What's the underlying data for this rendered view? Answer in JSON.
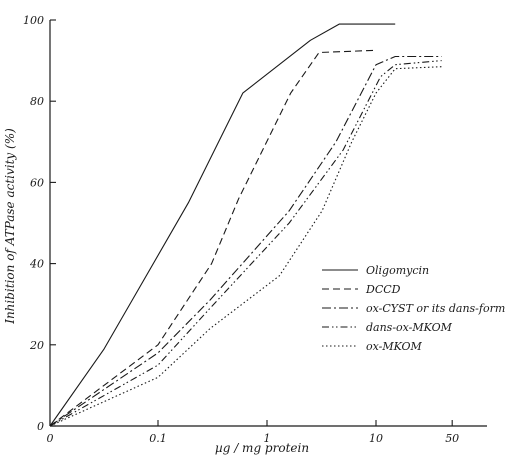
{
  "chart_data": {
    "type": "line",
    "xlabel": "µg / mg protein",
    "ylabel": "Inhibition of ATPase activity   (%)",
    "x_scale": "log",
    "xlim": [
      0,
      50
    ],
    "ylim": [
      0,
      100
    ],
    "x_ticks": [
      {
        "value": 0,
        "label": "0"
      },
      {
        "value": 0.1,
        "label": "0.1"
      },
      {
        "value": 1,
        "label": "1"
      },
      {
        "value": 10,
        "label": "10"
      },
      {
        "value": 50,
        "label": "50"
      }
    ],
    "y_ticks": [
      {
        "value": 0,
        "label": "0"
      },
      {
        "value": 20,
        "label": "20"
      },
      {
        "value": 40,
        "label": "40"
      },
      {
        "value": 60,
        "label": "60"
      },
      {
        "value": 80,
        "label": "80"
      },
      {
        "value": 100,
        "label": "100"
      }
    ],
    "grid": false,
    "legend_position": "bottom-right",
    "series": [
      {
        "name": "Oligomycin",
        "style": "solid",
        "x": [
          0,
          0.032,
          0.19,
          0.6,
          2.5,
          4.6,
          15
        ],
        "y": [
          0,
          19,
          55,
          82,
          95,
          99,
          99
        ]
      },
      {
        "name": "DCCD",
        "style": "dashed",
        "x": [
          0,
          0.1,
          0.31,
          0.55,
          1.65,
          3.0,
          9.5
        ],
        "y": [
          0,
          20,
          40,
          56,
          82,
          92,
          92.5
        ]
      },
      {
        "name": "ox-CYST or its dans-form",
        "style": "dashdot",
        "x": [
          0,
          0.1,
          0.3,
          1.6,
          4.3,
          10,
          15,
          40
        ],
        "y": [
          0,
          18,
          31,
          53,
          70,
          89,
          91,
          91
        ]
      },
      {
        "name": "dans-ox-MKOM",
        "style": "dashdotdot",
        "x": [
          0,
          0.1,
          0.3,
          1.6,
          5,
          11,
          15,
          40
        ],
        "y": [
          0,
          15,
          29,
          50,
          68,
          86,
          89,
          90
        ]
      },
      {
        "name": "ox-MKOM",
        "style": "dotted",
        "x": [
          0,
          0.1,
          0.3,
          1.3,
          3.2,
          6,
          10,
          15,
          40
        ],
        "y": [
          0,
          12,
          24,
          37,
          53,
          70,
          82,
          88,
          88.5
        ]
      }
    ]
  }
}
